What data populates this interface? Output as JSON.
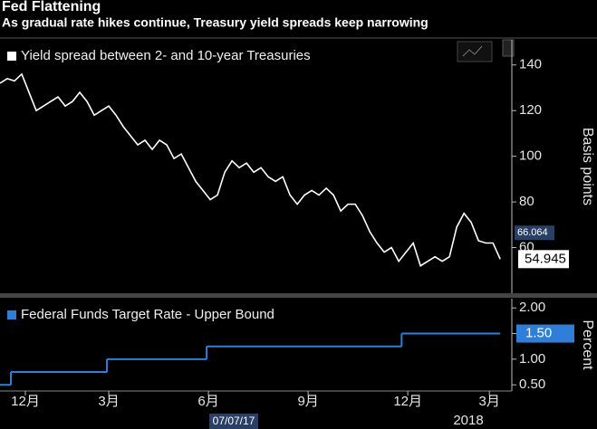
{
  "title": "Fed Flattening",
  "subtitle": "As gradual rate hikes continue, Treasury yield spreads keep narrowing",
  "chart_data": [
    {
      "type": "line",
      "y_label": "Basis points",
      "xlim": [
        0,
        70.6
      ],
      "ylim": [
        40,
        151
      ],
      "yticks": [
        60,
        80,
        100,
        120,
        140
      ],
      "marker_value": 66.064,
      "series": [
        {
          "name": "Yield spread between 2- and 10-year Treasuries",
          "color": "#ffffff",
          "values": [
            132,
            134,
            133,
            136,
            128,
            120,
            122,
            124,
            126,
            122,
            124,
            128,
            124,
            118,
            120,
            122,
            118,
            113,
            109,
            105,
            107,
            103,
            107,
            105,
            99,
            101,
            95,
            89,
            85,
            81,
            83,
            93,
            98,
            95,
            97,
            93,
            95,
            91,
            89,
            91,
            83,
            79,
            83,
            85,
            83,
            86,
            83,
            76,
            79,
            79,
            74,
            67,
            62,
            58,
            60,
            54,
            58,
            62,
            52,
            54,
            56,
            54,
            56,
            69,
            75,
            71,
            63,
            62,
            62,
            54.945
          ]
        }
      ]
    },
    {
      "type": "step",
      "y_label": "Percent",
      "xlim": [
        0,
        70.6
      ],
      "ylim": [
        0.38,
        2.18
      ],
      "yticks": [
        {
          "value": 0.5,
          "label": "0.50"
        },
        {
          "value": 1.0,
          "label": "1.00"
        },
        {
          "value": 1.5,
          "label": "1.50"
        },
        {
          "value": 2.0,
          "label": "2.00"
        }
      ],
      "xticks": [
        {
          "value": 3.5,
          "label": "12月"
        },
        {
          "value": 15,
          "label": "3月"
        },
        {
          "value": 28.75,
          "label": "6月"
        },
        {
          "value": 42.5,
          "label": "9月"
        },
        {
          "value": 56.25,
          "label": "12月"
        },
        {
          "value": 67.5,
          "label": "3月"
        }
      ],
      "year_label": "2018",
      "cursor_label": "07/07/17",
      "last_label": "1.50",
      "series": [
        {
          "name": "Federal Funds Target Rate - Upper Bound",
          "color": "#2f7fd8",
          "x": [
            0,
            1.5,
            14.75,
            28.5,
            55.4,
            69
          ],
          "values": [
            0.5,
            0.75,
            1.0,
            1.25,
            1.5,
            1.5
          ]
        }
      ]
    }
  ]
}
